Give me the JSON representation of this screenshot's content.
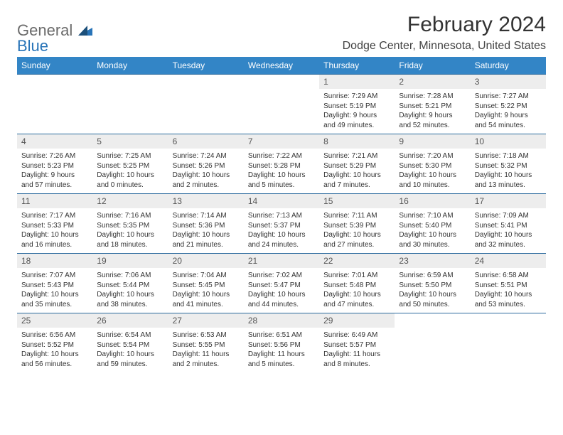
{
  "brand": {
    "part1": "General",
    "part2": "Blue"
  },
  "title": "February 2024",
  "location": "Dodge Center, Minnesota, United States",
  "colors": {
    "header_bg": "#3385c6",
    "header_text": "#ffffff",
    "daynum_bg": "#ededed",
    "border": "#2c6b9e",
    "brand_gray": "#6b6b6b",
    "brand_blue": "#2874b8"
  },
  "day_names": [
    "Sunday",
    "Monday",
    "Tuesday",
    "Wednesday",
    "Thursday",
    "Friday",
    "Saturday"
  ],
  "weeks": [
    [
      null,
      null,
      null,
      null,
      {
        "n": "1",
        "sr": "7:29 AM",
        "ss": "5:19 PM",
        "dl": "9 hours and 49 minutes."
      },
      {
        "n": "2",
        "sr": "7:28 AM",
        "ss": "5:21 PM",
        "dl": "9 hours and 52 minutes."
      },
      {
        "n": "3",
        "sr": "7:27 AM",
        "ss": "5:22 PM",
        "dl": "9 hours and 54 minutes."
      }
    ],
    [
      {
        "n": "4",
        "sr": "7:26 AM",
        "ss": "5:23 PM",
        "dl": "9 hours and 57 minutes."
      },
      {
        "n": "5",
        "sr": "7:25 AM",
        "ss": "5:25 PM",
        "dl": "10 hours and 0 minutes."
      },
      {
        "n": "6",
        "sr": "7:24 AM",
        "ss": "5:26 PM",
        "dl": "10 hours and 2 minutes."
      },
      {
        "n": "7",
        "sr": "7:22 AM",
        "ss": "5:28 PM",
        "dl": "10 hours and 5 minutes."
      },
      {
        "n": "8",
        "sr": "7:21 AM",
        "ss": "5:29 PM",
        "dl": "10 hours and 7 minutes."
      },
      {
        "n": "9",
        "sr": "7:20 AM",
        "ss": "5:30 PM",
        "dl": "10 hours and 10 minutes."
      },
      {
        "n": "10",
        "sr": "7:18 AM",
        "ss": "5:32 PM",
        "dl": "10 hours and 13 minutes."
      }
    ],
    [
      {
        "n": "11",
        "sr": "7:17 AM",
        "ss": "5:33 PM",
        "dl": "10 hours and 16 minutes."
      },
      {
        "n": "12",
        "sr": "7:16 AM",
        "ss": "5:35 PM",
        "dl": "10 hours and 18 minutes."
      },
      {
        "n": "13",
        "sr": "7:14 AM",
        "ss": "5:36 PM",
        "dl": "10 hours and 21 minutes."
      },
      {
        "n": "14",
        "sr": "7:13 AM",
        "ss": "5:37 PM",
        "dl": "10 hours and 24 minutes."
      },
      {
        "n": "15",
        "sr": "7:11 AM",
        "ss": "5:39 PM",
        "dl": "10 hours and 27 minutes."
      },
      {
        "n": "16",
        "sr": "7:10 AM",
        "ss": "5:40 PM",
        "dl": "10 hours and 30 minutes."
      },
      {
        "n": "17",
        "sr": "7:09 AM",
        "ss": "5:41 PM",
        "dl": "10 hours and 32 minutes."
      }
    ],
    [
      {
        "n": "18",
        "sr": "7:07 AM",
        "ss": "5:43 PM",
        "dl": "10 hours and 35 minutes."
      },
      {
        "n": "19",
        "sr": "7:06 AM",
        "ss": "5:44 PM",
        "dl": "10 hours and 38 minutes."
      },
      {
        "n": "20",
        "sr": "7:04 AM",
        "ss": "5:45 PM",
        "dl": "10 hours and 41 minutes."
      },
      {
        "n": "21",
        "sr": "7:02 AM",
        "ss": "5:47 PM",
        "dl": "10 hours and 44 minutes."
      },
      {
        "n": "22",
        "sr": "7:01 AM",
        "ss": "5:48 PM",
        "dl": "10 hours and 47 minutes."
      },
      {
        "n": "23",
        "sr": "6:59 AM",
        "ss": "5:50 PM",
        "dl": "10 hours and 50 minutes."
      },
      {
        "n": "24",
        "sr": "6:58 AM",
        "ss": "5:51 PM",
        "dl": "10 hours and 53 minutes."
      }
    ],
    [
      {
        "n": "25",
        "sr": "6:56 AM",
        "ss": "5:52 PM",
        "dl": "10 hours and 56 minutes."
      },
      {
        "n": "26",
        "sr": "6:54 AM",
        "ss": "5:54 PM",
        "dl": "10 hours and 59 minutes."
      },
      {
        "n": "27",
        "sr": "6:53 AM",
        "ss": "5:55 PM",
        "dl": "11 hours and 2 minutes."
      },
      {
        "n": "28",
        "sr": "6:51 AM",
        "ss": "5:56 PM",
        "dl": "11 hours and 5 minutes."
      },
      {
        "n": "29",
        "sr": "6:49 AM",
        "ss": "5:57 PM",
        "dl": "11 hours and 8 minutes."
      },
      null,
      null
    ]
  ],
  "labels": {
    "sunrise": "Sunrise: ",
    "sunset": "Sunset: ",
    "daylight": "Daylight: "
  }
}
